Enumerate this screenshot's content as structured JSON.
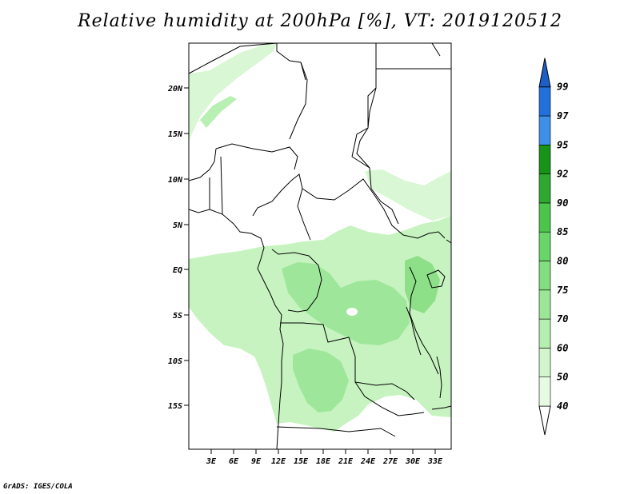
{
  "title": "Relative humidity at 200hPa [%], VT: 2019120512",
  "credit": "GrADS: IGES/COLA",
  "map": {
    "type": "filled-contour map",
    "lat_labels": [
      "20N",
      "15N",
      "10N",
      "5N",
      "EQ",
      "5S",
      "10S",
      "15S"
    ],
    "lon_labels": [
      "3E",
      "6E",
      "9E",
      "12E",
      "15E",
      "18E",
      "21E",
      "24E",
      "27E",
      "30E",
      "33E"
    ],
    "lat_range": [
      "18S",
      "24N"
    ],
    "lon_range": [
      "0E",
      "35E"
    ]
  },
  "colorbar": {
    "levels": [
      "40",
      "50",
      "60",
      "70",
      "75",
      "80",
      "85",
      "90",
      "92",
      "95",
      "97",
      "99"
    ],
    "colors": [
      "#ffffff",
      "#e6fbe2",
      "#d2f5cc",
      "#b5efb0",
      "#9be797",
      "#82de80",
      "#6ad66a",
      "#4bc64b",
      "#2ea82e",
      "#179317",
      "#3d8fe8",
      "#2170dc",
      "#1a5fc8"
    ]
  }
}
